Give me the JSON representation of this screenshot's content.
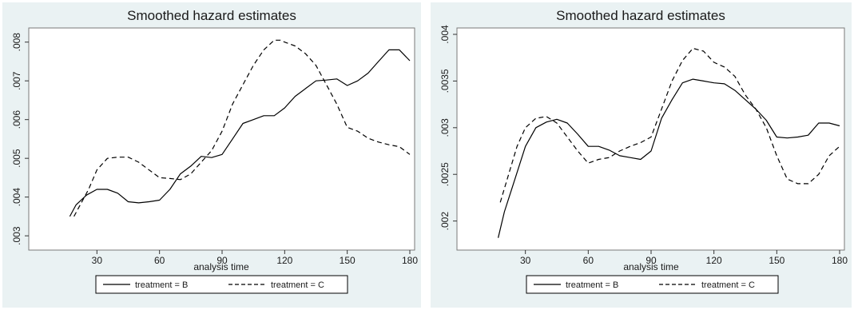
{
  "chart_data": [
    {
      "type": "line",
      "title": "Smoothed hazard estimates",
      "xlabel": "analysis time",
      "ylabel": "",
      "xlim": [
        0,
        180
      ],
      "ylim": [
        0.0029,
        0.0082
      ],
      "xticks": [
        "30",
        "60",
        "90",
        "120",
        "150",
        "180"
      ],
      "yticks": [
        ".003",
        ".004",
        ".005",
        ".006",
        ".007",
        ".008"
      ],
      "ytick_values": [
        0.003,
        0.004,
        0.005,
        0.006,
        0.007,
        0.008
      ],
      "grid": false,
      "legend": "bottom",
      "series": [
        {
          "name": "treatment = B",
          "style": "solid",
          "x": [
            17,
            20,
            25,
            30,
            35,
            40,
            45,
            50,
            55,
            60,
            65,
            70,
            75,
            80,
            85,
            90,
            95,
            100,
            105,
            110,
            115,
            120,
            125,
            130,
            135,
            140,
            145,
            150,
            155,
            160,
            165,
            170,
            175,
            180
          ],
          "y": [
            0.0035,
            0.0038,
            0.00405,
            0.0042,
            0.0042,
            0.0041,
            0.00388,
            0.00385,
            0.00388,
            0.00392,
            0.0042,
            0.0046,
            0.0048,
            0.00505,
            0.00502,
            0.0051,
            0.0055,
            0.0059,
            0.006,
            0.0061,
            0.0061,
            0.0063,
            0.0066,
            0.0068,
            0.007,
            0.00702,
            0.00705,
            0.00688,
            0.007,
            0.0072,
            0.0075,
            0.0078,
            0.0078,
            0.00752
          ]
        },
        {
          "name": "treatment = C",
          "style": "dashed",
          "x": [
            19,
            22,
            26,
            30,
            35,
            40,
            45,
            50,
            55,
            60,
            65,
            70,
            75,
            80,
            85,
            90,
            95,
            100,
            105,
            110,
            115,
            118,
            120,
            125,
            130,
            135,
            140,
            145,
            150,
            155,
            160,
            165,
            170,
            175,
            180
          ],
          "y": [
            0.0035,
            0.0038,
            0.0042,
            0.0047,
            0.005,
            0.00503,
            0.00503,
            0.0049,
            0.0047,
            0.0045,
            0.00448,
            0.00445,
            0.0046,
            0.0049,
            0.0052,
            0.0057,
            0.0064,
            0.0069,
            0.0074,
            0.0078,
            0.00805,
            0.00805,
            0.008,
            0.0079,
            0.0077,
            0.0074,
            0.0069,
            0.0064,
            0.0058,
            0.0057,
            0.00552,
            0.00542,
            0.00535,
            0.0053,
            0.0051
          ]
        }
      ]
    },
    {
      "type": "line",
      "title": "Smoothed hazard estimates",
      "xlabel": "analysis time",
      "ylabel": "",
      "xlim": [
        0,
        180
      ],
      "ylim": [
        0.0018,
        0.004
      ],
      "xticks": [
        "30",
        "60",
        "90",
        "120",
        "150",
        "180"
      ],
      "yticks": [
        ".002",
        ".0025",
        ".003",
        ".0035",
        ".004"
      ],
      "ytick_values": [
        0.002,
        0.0025,
        0.003,
        0.0035,
        0.004
      ],
      "grid": false,
      "legend": "bottom",
      "series": [
        {
          "name": "treatment = B",
          "style": "solid",
          "x": [
            17,
            20,
            25,
            30,
            35,
            40,
            45,
            50,
            55,
            60,
            65,
            70,
            75,
            80,
            85,
            90,
            95,
            100,
            105,
            110,
            115,
            120,
            125,
            130,
            135,
            140,
            145,
            150,
            155,
            160,
            165,
            170,
            175,
            180
          ],
          "y": [
            0.00182,
            0.0021,
            0.00245,
            0.0028,
            0.003,
            0.00306,
            0.00309,
            0.00305,
            0.00293,
            0.0028,
            0.0028,
            0.00276,
            0.0027,
            0.00268,
            0.00266,
            0.00275,
            0.0031,
            0.0033,
            0.00348,
            0.00352,
            0.0035,
            0.00348,
            0.00347,
            0.0034,
            0.0033,
            0.0032,
            0.00308,
            0.0029,
            0.00289,
            0.0029,
            0.00292,
            0.00305,
            0.00305,
            0.00302
          ]
        },
        {
          "name": "treatment = C",
          "style": "dashed",
          "x": [
            18,
            22,
            26,
            30,
            35,
            40,
            45,
            50,
            55,
            60,
            65,
            70,
            75,
            80,
            85,
            90,
            95,
            100,
            105,
            110,
            115,
            120,
            125,
            130,
            135,
            140,
            145,
            150,
            155,
            160,
            165,
            170,
            175,
            180
          ],
          "y": [
            0.0022,
            0.0025,
            0.0028,
            0.003,
            0.0031,
            0.00312,
            0.00305,
            0.0029,
            0.00275,
            0.00262,
            0.00266,
            0.00268,
            0.00275,
            0.0028,
            0.00284,
            0.0029,
            0.0032,
            0.0035,
            0.00372,
            0.00385,
            0.00382,
            0.0037,
            0.00365,
            0.00355,
            0.00335,
            0.0032,
            0.003,
            0.0027,
            0.00245,
            0.0024,
            0.0024,
            0.0025,
            0.0027,
            0.0028
          ]
        }
      ]
    }
  ]
}
